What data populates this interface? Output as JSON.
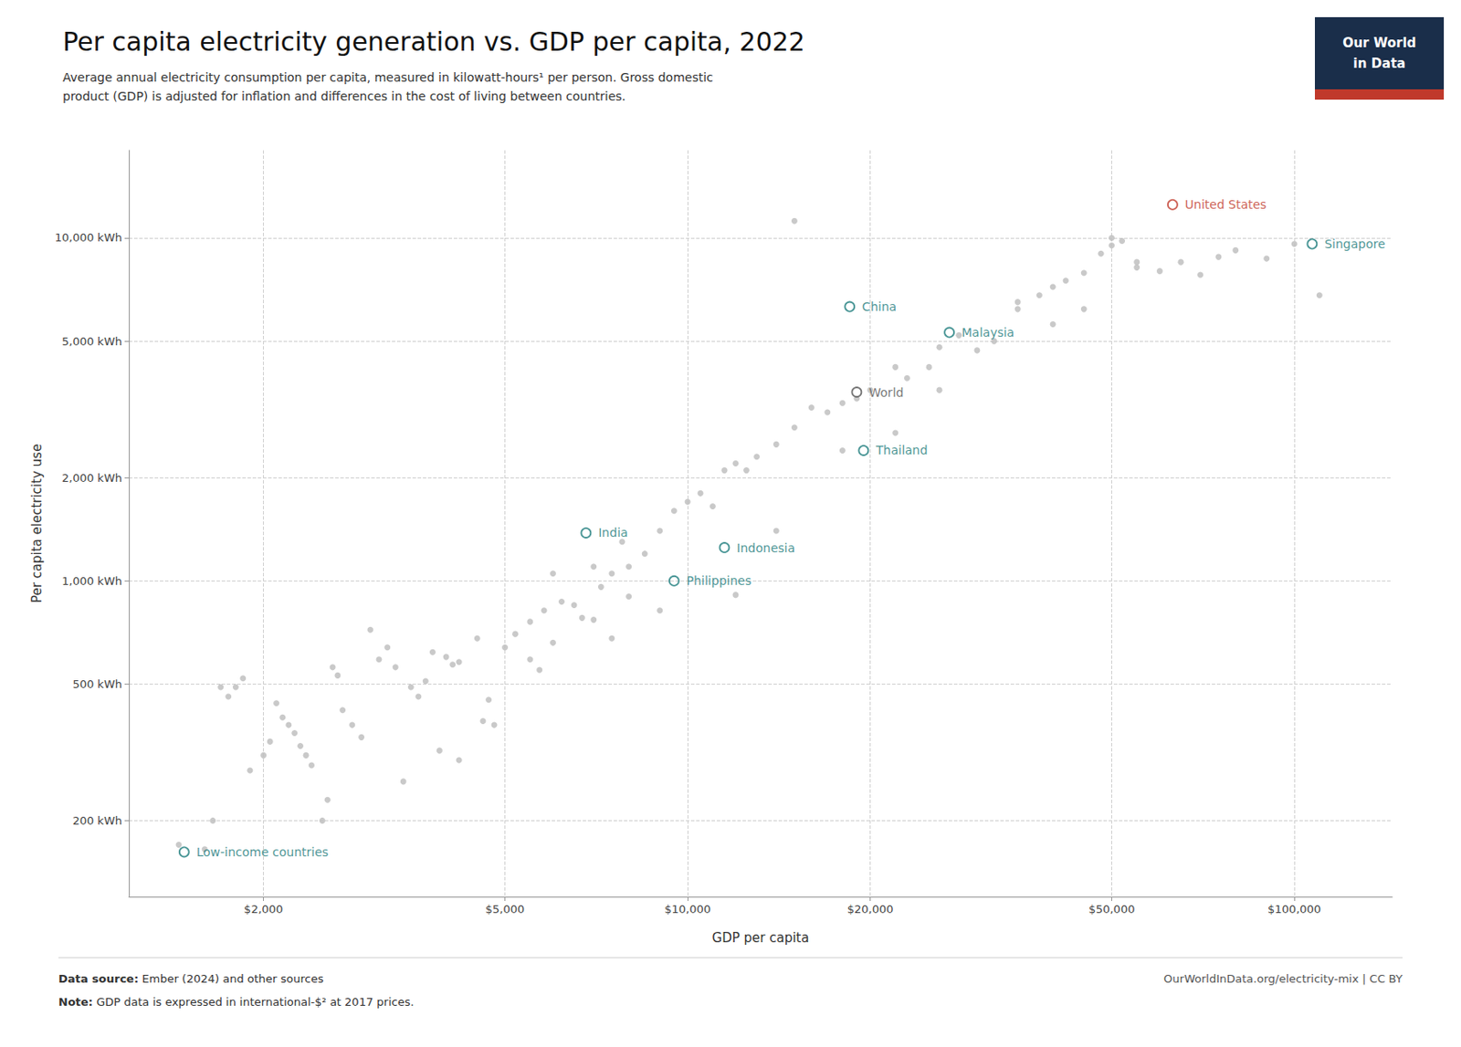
{
  "chart_data": {
    "type": "scatter",
    "title": "Per capita electricity generation vs. GDP per capita, 2022",
    "subtitle": "Average annual electricity consumption per capita, measured in kilowatt-hours¹ per person. Gross domestic\nproduct (GDP) is adjusted for inflation and differences in the cost of living between countries.",
    "xlabel": "GDP per capita",
    "ylabel": "Per capita electricity use",
    "log": true,
    "grid": true,
    "xlim": [
      1200,
      145000
    ],
    "ylim": [
      120,
      18000
    ],
    "xticks": [
      {
        "value": 2000,
        "label": "$2,000"
      },
      {
        "value": 5000,
        "label": "$5,000"
      },
      {
        "value": 10000,
        "label": "$10,000"
      },
      {
        "value": 20000,
        "label": "$20,000"
      },
      {
        "value": 50000,
        "label": "$50,000"
      },
      {
        "value": 100000,
        "label": "$100,000"
      }
    ],
    "yticks": [
      {
        "value": 200,
        "label": "200 kWh"
      },
      {
        "value": 500,
        "label": "500 kWh"
      },
      {
        "value": 1000,
        "label": "1,000 kWh"
      },
      {
        "value": 2000,
        "label": "2,000 kWh"
      },
      {
        "value": 5000,
        "label": "5,000 kWh"
      },
      {
        "value": 10000,
        "label": "10,000 kWh"
      }
    ],
    "series": [
      {
        "color": "#c0c0c0",
        "marker": "circle",
        "x": [
          1450,
          1600,
          1650,
          1700,
          1750,
          1800,
          1850,
          1900,
          2000,
          2050,
          2100,
          2150,
          2200,
          2250,
          2300,
          2350,
          2400,
          2500,
          2550,
          2600,
          2650,
          2700,
          2800,
          2900,
          3000,
          3100,
          3200,
          3300,
          3400,
          3500,
          3600,
          3700,
          3800,
          3900,
          4000,
          4100,
          4200,
          4200,
          4500,
          4600,
          4700,
          4800,
          5000,
          5200,
          5500,
          5500,
          5700,
          5800,
          6000,
          6000,
          6200,
          6500,
          6700,
          7000,
          7000,
          7200,
          7500,
          7500,
          7800,
          8000,
          8000,
          8500,
          9000,
          9000,
          9500,
          10000,
          10500,
          11000,
          11500,
          12000,
          12000,
          12500,
          13000,
          14000,
          14000,
          15000,
          15000,
          16000,
          17000,
          18000,
          18000,
          19000,
          20000,
          22000,
          22000,
          23000,
          25000,
          26000,
          26000,
          28000,
          30000,
          32000,
          35000,
          35000,
          38000,
          40000,
          40000,
          42000,
          45000,
          45000,
          48000,
          50000,
          50000,
          52000,
          55000,
          55000,
          60000,
          65000,
          70000,
          75000,
          80000,
          90000,
          100000,
          110000
        ],
        "values": [
          170,
          165,
          200,
          490,
          460,
          490,
          520,
          280,
          310,
          340,
          440,
          400,
          380,
          360,
          330,
          310,
          290,
          200,
          230,
          560,
          530,
          420,
          380,
          350,
          720,
          590,
          640,
          560,
          260,
          490,
          460,
          510,
          620,
          320,
          600,
          570,
          580,
          300,
          680,
          390,
          450,
          380,
          640,
          700,
          590,
          760,
          550,
          820,
          660,
          1050,
          870,
          850,
          780,
          770,
          1100,
          960,
          680,
          1050,
          1300,
          900,
          1100,
          1200,
          820,
          1400,
          1600,
          1700,
          1800,
          1650,
          2100,
          910,
          2200,
          2100,
          2300,
          1400,
          2500,
          2800,
          11200,
          3200,
          3100,
          2400,
          3300,
          3400,
          3600,
          2700,
          4200,
          3900,
          4200,
          3600,
          4800,
          5200,
          4700,
          5000,
          6200,
          6500,
          6800,
          5600,
          7200,
          7500,
          6200,
          7900,
          9000,
          9500,
          10000,
          9800,
          8200,
          8500,
          8000,
          8500,
          7800,
          8800,
          9200,
          8700,
          9600,
          6800
        ]
      }
    ],
    "annotations": [
      {
        "text": "United States",
        "x": 63000,
        "y": 12500,
        "color": "#c0392b"
      },
      {
        "text": "Singapore",
        "x": 107000,
        "y": 9600,
        "color": "#1a7a7a"
      },
      {
        "text": "China",
        "x": 18500,
        "y": 6300,
        "color": "#1a7a7a"
      },
      {
        "text": "Malaysia",
        "x": 27000,
        "y": 5300,
        "color": "#1a7a7a"
      },
      {
        "text": "World",
        "x": 19000,
        "y": 3550,
        "color": "#555555"
      },
      {
        "text": "Thailand",
        "x": 19500,
        "y": 2400,
        "color": "#1a7a7a"
      },
      {
        "text": "India",
        "x": 6800,
        "y": 1380,
        "color": "#1a7a7a"
      },
      {
        "text": "Indonesia",
        "x": 11500,
        "y": 1250,
        "color": "#1a7a7a"
      },
      {
        "text": "Philippines",
        "x": 9500,
        "y": 1000,
        "color": "#1a7a7a"
      },
      {
        "text": "Low-income countries",
        "x": 1480,
        "y": 162,
        "color": "#1a7a7a"
      }
    ],
    "footnotes": [
      [
        "Data source:",
        " Ember (2024) and other sources"
      ],
      [
        "Note:",
        " GDP data is expressed in international-$² at 2017 prices."
      ]
    ],
    "footnote_right": "OurWorldInData.org/electricity-mix | CC BY",
    "logo": {
      "lines": [
        "Our World",
        "in Data"
      ],
      "color": "#1a2e4a",
      "stripe_color": "#c0392b"
    }
  }
}
